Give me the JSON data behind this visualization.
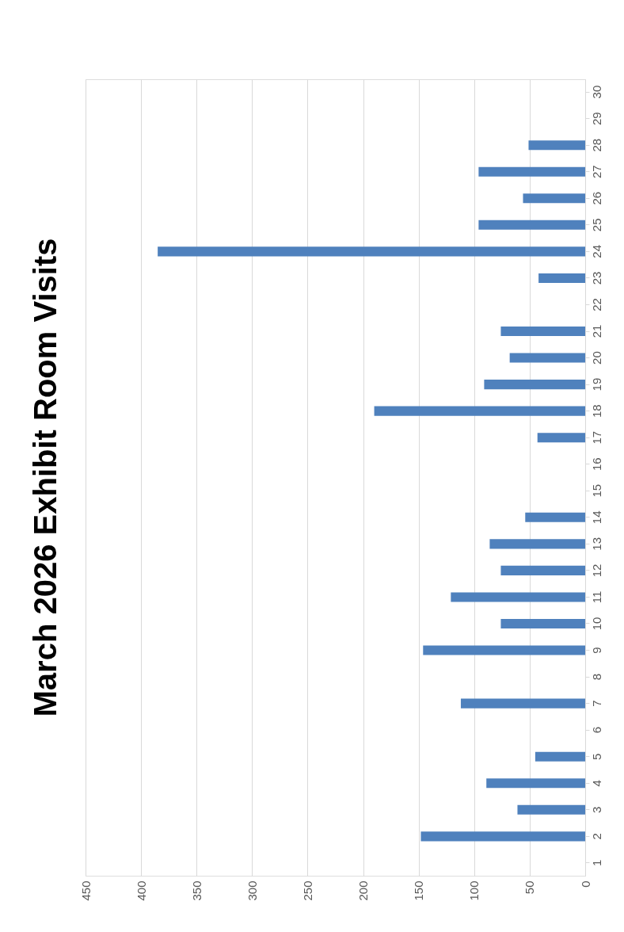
{
  "chart_data": {
    "type": "bar",
    "orientation": "horizontal",
    "title": "March 2026 Exhibit Room Visits",
    "categories": [
      "30",
      "29",
      "28",
      "27",
      "26",
      "25",
      "24",
      "23",
      "22",
      "21",
      "20",
      "19",
      "18",
      "17",
      "16",
      "15",
      "14",
      "13",
      "12",
      "11",
      "10",
      "9",
      "8",
      "7",
      "6",
      "5",
      "4",
      "3",
      "2",
      "1"
    ],
    "values": [
      null,
      null,
      51,
      96,
      56,
      96,
      385,
      42,
      null,
      76,
      68,
      91,
      190,
      43,
      null,
      null,
      54,
      86,
      76,
      121,
      76,
      146,
      null,
      112,
      null,
      45,
      89,
      61,
      148,
      null
    ],
    "color": "#4f81bd",
    "xlim": [
      450,
      0
    ],
    "xticks": [
      0,
      50,
      100,
      150,
      200,
      250,
      300,
      350,
      400,
      450
    ],
    "grid": "x"
  }
}
